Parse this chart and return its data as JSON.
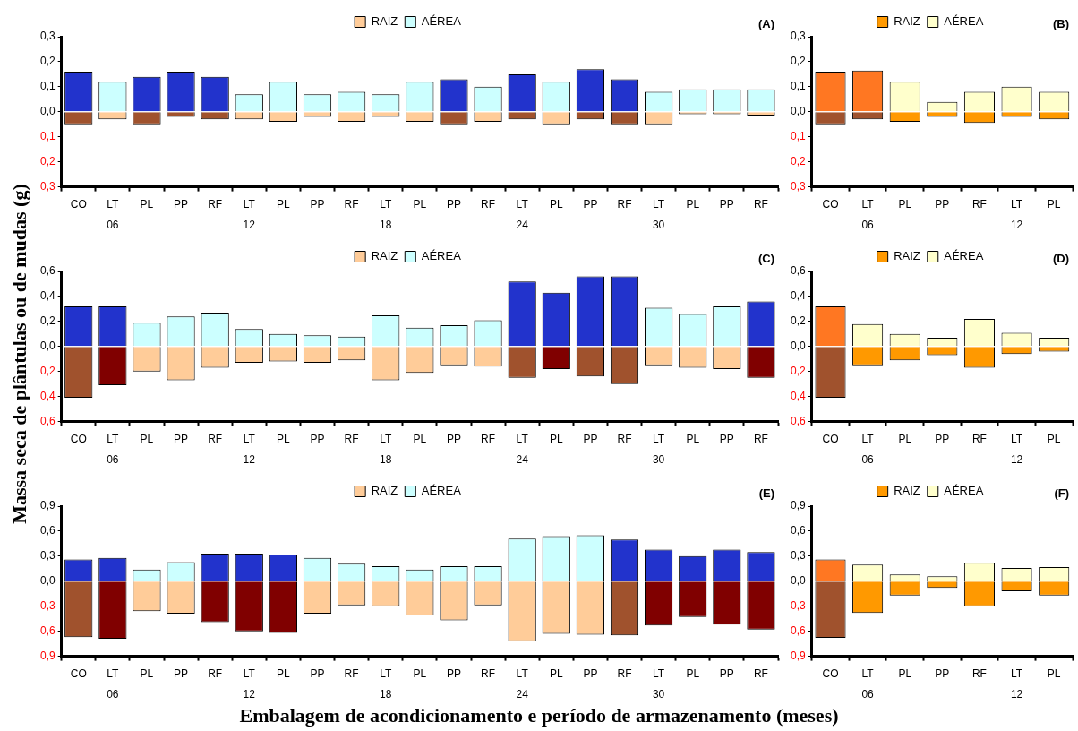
{
  "chart_data": [
    {
      "type": "bar",
      "title": "(A)",
      "ylabel": "Massa seca de plântulas ou de mudas (g)",
      "stacked": true,
      "legend": "top",
      "categories": [
        "CO",
        "LT",
        "PL",
        "PP",
        "RF",
        "LT",
        "PL",
        "PP",
        "RF",
        "LT",
        "PL",
        "PP",
        "RF",
        "LT",
        "PL",
        "PP",
        "RF",
        "LT",
        "PL",
        "PP",
        "RF"
      ],
      "annotations": [
        "06",
        "12",
        "18",
        "24",
        "30"
      ],
      "ylim": [
        -0.3,
        0.3
      ],
      "yticks": [
        {
          "value": -0.3,
          "label": "0,3"
        },
        {
          "value": -0.2,
          "label": "0,2"
        },
        {
          "value": -0.1,
          "label": "0,1"
        },
        {
          "value": 0,
          "label": "0,0"
        },
        {
          "value": 0.1,
          "label": "0,1"
        },
        {
          "value": 0.2,
          "label": "0,2"
        },
        {
          "value": 0.3,
          "label": "0,3"
        }
      ],
      "series": [
        {
          "name": "RAIZ",
          "color": "#ffcc99",
          "colors": [
            "#a0522d",
            "#ffcc99",
            "#a0522d",
            "#a0522d",
            "#a0522d",
            "#ffcc99",
            "#ffcc99",
            "#ffcc99",
            "#ffcc99",
            "#ffcc99",
            "#ffcc99",
            "#a0522d",
            "#ffcc99",
            "#a0522d",
            "#ffcc99",
            "#a0522d",
            "#a0522d",
            "#ffcc99",
            "#ffcc99",
            "#ffcc99",
            "#ffcc99"
          ],
          "values": [
            -0.05,
            -0.03,
            -0.05,
            -0.02,
            -0.03,
            -0.03,
            -0.04,
            -0.02,
            -0.04,
            -0.02,
            -0.04,
            -0.05,
            -0.04,
            -0.03,
            -0.05,
            -0.03,
            -0.05,
            -0.05,
            -0.01,
            -0.01,
            -0.015
          ]
        },
        {
          "name": "AÉREA",
          "color": "#ccffff",
          "colors": [
            "#2233cc",
            "#ccffff",
            "#2233cc",
            "#2233cc",
            "#2233cc",
            "#ccffff",
            "#ccffff",
            "#ccffff",
            "#ccffff",
            "#ccffff",
            "#ccffff",
            "#2233cc",
            "#ccffff",
            "#2233cc",
            "#ccffff",
            "#2233cc",
            "#2233cc",
            "#ccffff",
            "#ccffff",
            "#ccffff",
            "#ccffff"
          ],
          "values": [
            0.16,
            0.12,
            0.14,
            0.16,
            0.14,
            0.07,
            0.12,
            0.07,
            0.08,
            0.07,
            0.12,
            0.13,
            0.1,
            0.15,
            0.12,
            0.17,
            0.13,
            0.08,
            0.09,
            0.09,
            0.09
          ]
        }
      ]
    },
    {
      "type": "bar",
      "title": "(B)",
      "stacked": true,
      "legend": "top",
      "categories": [
        "CO",
        "LT",
        "PL",
        "PP",
        "RF",
        "LT",
        "PL"
      ],
      "annotations": [
        "06",
        "12"
      ],
      "ylim": [
        -0.3,
        0.3
      ],
      "yticks": [
        {
          "value": -0.3,
          "label": "0,3"
        },
        {
          "value": -0.2,
          "label": "0,2"
        },
        {
          "value": -0.1,
          "label": "0,1"
        },
        {
          "value": 0,
          "label": "0,0"
        },
        {
          "value": 0.1,
          "label": "0,1"
        },
        {
          "value": 0.2,
          "label": "0,2"
        },
        {
          "value": 0.3,
          "label": "0,3"
        }
      ],
      "series": [
        {
          "name": "RAIZ",
          "color": "#ff9900",
          "colors": [
            "#a0522d",
            "#a0522d",
            "#ff9900",
            "#ff9900",
            "#ff9900",
            "#ff9900",
            "#ff9900"
          ],
          "values": [
            -0.05,
            -0.03,
            -0.04,
            -0.02,
            -0.045,
            -0.02,
            -0.03
          ]
        },
        {
          "name": "AÉREA",
          "color": "#ffffcc",
          "colors": [
            "#ff7722",
            "#ff7722",
            "#ffffcc",
            "#ffffcc",
            "#ffffcc",
            "#ffffcc",
            "#ffffcc"
          ],
          "values": [
            0.16,
            0.165,
            0.12,
            0.04,
            0.08,
            0.1,
            0.08
          ]
        }
      ]
    },
    {
      "type": "bar",
      "title": "(C)",
      "stacked": true,
      "legend": "top",
      "categories": [
        "CO",
        "LT",
        "PL",
        "PP",
        "RF",
        "LT",
        "PL",
        "PP",
        "RF",
        "LT",
        "PL",
        "PP",
        "RF",
        "LT",
        "PL",
        "PP",
        "RF",
        "LT",
        "PL",
        "PP",
        "RF"
      ],
      "annotations": [
        "06",
        "12",
        "18",
        "24",
        "30"
      ],
      "ylim": [
        -0.6,
        0.6
      ],
      "yticks": [
        {
          "value": -0.6,
          "label": "0,6"
        },
        {
          "value": -0.4,
          "label": "0,4"
        },
        {
          "value": -0.2,
          "label": "0,2"
        },
        {
          "value": 0,
          "label": "0,0"
        },
        {
          "value": 0.2,
          "label": "0,2"
        },
        {
          "value": 0.4,
          "label": "0,4"
        },
        {
          "value": 0.6,
          "label": "0,6"
        }
      ],
      "series": [
        {
          "name": "RAIZ",
          "color": "#ffcc99",
          "colors": [
            "#a0522d",
            "#800000",
            "#ffcc99",
            "#ffcc99",
            "#ffcc99",
            "#ffcc99",
            "#ffcc99",
            "#ffcc99",
            "#ffcc99",
            "#ffcc99",
            "#ffcc99",
            "#ffcc99",
            "#ffcc99",
            "#a0522d",
            "#800000",
            "#a0522d",
            "#a0522d",
            "#ffcc99",
            "#ffcc99",
            "#ffcc99",
            "#800000"
          ],
          "values": [
            -0.41,
            -0.31,
            -0.2,
            -0.27,
            -0.17,
            -0.13,
            -0.12,
            -0.13,
            -0.11,
            -0.27,
            -0.21,
            -0.15,
            -0.16,
            -0.25,
            -0.18,
            -0.24,
            -0.3,
            -0.15,
            -0.17,
            -0.18,
            -0.25
          ]
        },
        {
          "name": "AÉREA",
          "color": "#ccffff",
          "colors": [
            "#2233cc",
            "#2233cc",
            "#ccffff",
            "#ccffff",
            "#ccffff",
            "#ccffff",
            "#ccffff",
            "#ccffff",
            "#ccffff",
            "#ccffff",
            "#ccffff",
            "#ccffff",
            "#ccffff",
            "#2233cc",
            "#2233cc",
            "#2233cc",
            "#2233cc",
            "#ccffff",
            "#ccffff",
            "#ccffff",
            "#2233cc"
          ],
          "values": [
            0.32,
            0.32,
            0.19,
            0.24,
            0.27,
            0.14,
            0.1,
            0.09,
            0.08,
            0.25,
            0.15,
            0.17,
            0.21,
            0.52,
            0.43,
            0.56,
            0.56,
            0.31,
            0.26,
            0.32,
            0.36
          ]
        }
      ]
    },
    {
      "type": "bar",
      "title": "(D)",
      "stacked": true,
      "legend": "top",
      "categories": [
        "CO",
        "LT",
        "PL",
        "PP",
        "RF",
        "LT",
        "PL"
      ],
      "annotations": [
        "06",
        "12"
      ],
      "ylim": [
        -0.6,
        0.6
      ],
      "yticks": [
        {
          "value": -0.6,
          "label": "0,6"
        },
        {
          "value": -0.4,
          "label": "0,4"
        },
        {
          "value": -0.2,
          "label": "0,2"
        },
        {
          "value": 0,
          "label": "0,0"
        },
        {
          "value": 0.2,
          "label": "0,2"
        },
        {
          "value": 0.4,
          "label": "0,4"
        },
        {
          "value": 0.6,
          "label": "0,6"
        }
      ],
      "series": [
        {
          "name": "RAIZ",
          "color": "#ff9900",
          "colors": [
            "#a0522d",
            "#ff9900",
            "#ff9900",
            "#ff9900",
            "#ff9900",
            "#ff9900",
            "#ff9900"
          ],
          "values": [
            -0.41,
            -0.15,
            -0.11,
            -0.07,
            -0.17,
            -0.06,
            -0.04
          ]
        },
        {
          "name": "AÉREA",
          "color": "#ffffcc",
          "colors": [
            "#ff7722",
            "#ffffcc",
            "#ffffcc",
            "#ffffcc",
            "#ffffcc",
            "#ffffcc",
            "#ffffcc"
          ],
          "values": [
            0.32,
            0.18,
            0.1,
            0.07,
            0.22,
            0.11,
            0.07
          ]
        }
      ]
    },
    {
      "type": "bar",
      "title": "(E)",
      "xlabel": "Embalagem de acondicionamento e período de armazenamento (meses)",
      "stacked": true,
      "legend": "top",
      "categories": [
        "CO",
        "LT",
        "PL",
        "PP",
        "RF",
        "LT",
        "PL",
        "PP",
        "RF",
        "LT",
        "PL",
        "PP",
        "RF",
        "LT",
        "PL",
        "PP",
        "RF",
        "LT",
        "PL",
        "PP",
        "RF"
      ],
      "annotations": [
        "06",
        "12",
        "18",
        "24",
        "30"
      ],
      "ylim": [
        -0.9,
        0.9
      ],
      "yticks": [
        {
          "value": -0.9,
          "label": "0,9"
        },
        {
          "value": -0.6,
          "label": "0,6"
        },
        {
          "value": -0.3,
          "label": "0,3"
        },
        {
          "value": 0,
          "label": "0,0"
        },
        {
          "value": 0.3,
          "label": "0,3"
        },
        {
          "value": 0.6,
          "label": "0,6"
        },
        {
          "value": 0.9,
          "label": "0,9"
        }
      ],
      "series": [
        {
          "name": "RAIZ",
          "color": "#ffcc99",
          "colors": [
            "#a0522d",
            "#800000",
            "#ffcc99",
            "#ffcc99",
            "#800000",
            "#800000",
            "#800000",
            "#ffcc99",
            "#ffcc99",
            "#ffcc99",
            "#ffcc99",
            "#ffcc99",
            "#ffcc99",
            "#ffcc99",
            "#ffcc99",
            "#ffcc99",
            "#a0522d",
            "#800000",
            "#800000",
            "#800000",
            "#800000"
          ],
          "values": [
            -0.67,
            -0.69,
            -0.36,
            -0.39,
            -0.49,
            -0.6,
            -0.62,
            -0.39,
            -0.29,
            -0.3,
            -0.41,
            -0.47,
            -0.29,
            -0.72,
            -0.63,
            -0.64,
            -0.65,
            -0.53,
            -0.43,
            -0.52,
            -0.58
          ]
        },
        {
          "name": "AÉREA",
          "color": "#ccffff",
          "colors": [
            "#2233cc",
            "#2233cc",
            "#ccffff",
            "#ccffff",
            "#2233cc",
            "#2233cc",
            "#2233cc",
            "#ccffff",
            "#ccffff",
            "#ccffff",
            "#ccffff",
            "#ccffff",
            "#ccffff",
            "#ccffff",
            "#ccffff",
            "#ccffff",
            "#2233cc",
            "#2233cc",
            "#2233cc",
            "#2233cc",
            "#2233cc"
          ],
          "values": [
            0.26,
            0.28,
            0.14,
            0.23,
            0.33,
            0.33,
            0.32,
            0.28,
            0.21,
            0.18,
            0.14,
            0.18,
            0.18,
            0.51,
            0.54,
            0.55,
            0.5,
            0.38,
            0.3,
            0.38,
            0.35
          ]
        }
      ]
    },
    {
      "type": "bar",
      "title": "(F)",
      "stacked": true,
      "legend": "top",
      "categories": [
        "CO",
        "LT",
        "PL",
        "PP",
        "RF",
        "LT",
        "PL"
      ],
      "annotations": [
        "06",
        "12"
      ],
      "ylim": [
        -0.9,
        0.9
      ],
      "yticks": [
        {
          "value": -0.9,
          "label": "0,9"
        },
        {
          "value": -0.6,
          "label": "0,6"
        },
        {
          "value": -0.3,
          "label": "0,3"
        },
        {
          "value": 0,
          "label": "0,0"
        },
        {
          "value": 0.3,
          "label": "0,3"
        },
        {
          "value": 0.6,
          "label": "0,6"
        },
        {
          "value": 0.9,
          "label": "0,9"
        }
      ],
      "series": [
        {
          "name": "RAIZ",
          "color": "#ff9900",
          "colors": [
            "#a0522d",
            "#ff9900",
            "#ff9900",
            "#ff9900",
            "#ff9900",
            "#ff9900",
            "#ff9900"
          ],
          "values": [
            -0.68,
            -0.38,
            -0.17,
            -0.08,
            -0.3,
            -0.12,
            -0.17
          ]
        },
        {
          "name": "AÉREA",
          "color": "#ffffcc",
          "colors": [
            "#ff7722",
            "#ffffcc",
            "#ffffcc",
            "#ffffcc",
            "#ffffcc",
            "#ffffcc",
            "#ffffcc"
          ],
          "values": [
            0.26,
            0.2,
            0.08,
            0.06,
            0.22,
            0.16,
            0.17
          ]
        }
      ]
    }
  ]
}
